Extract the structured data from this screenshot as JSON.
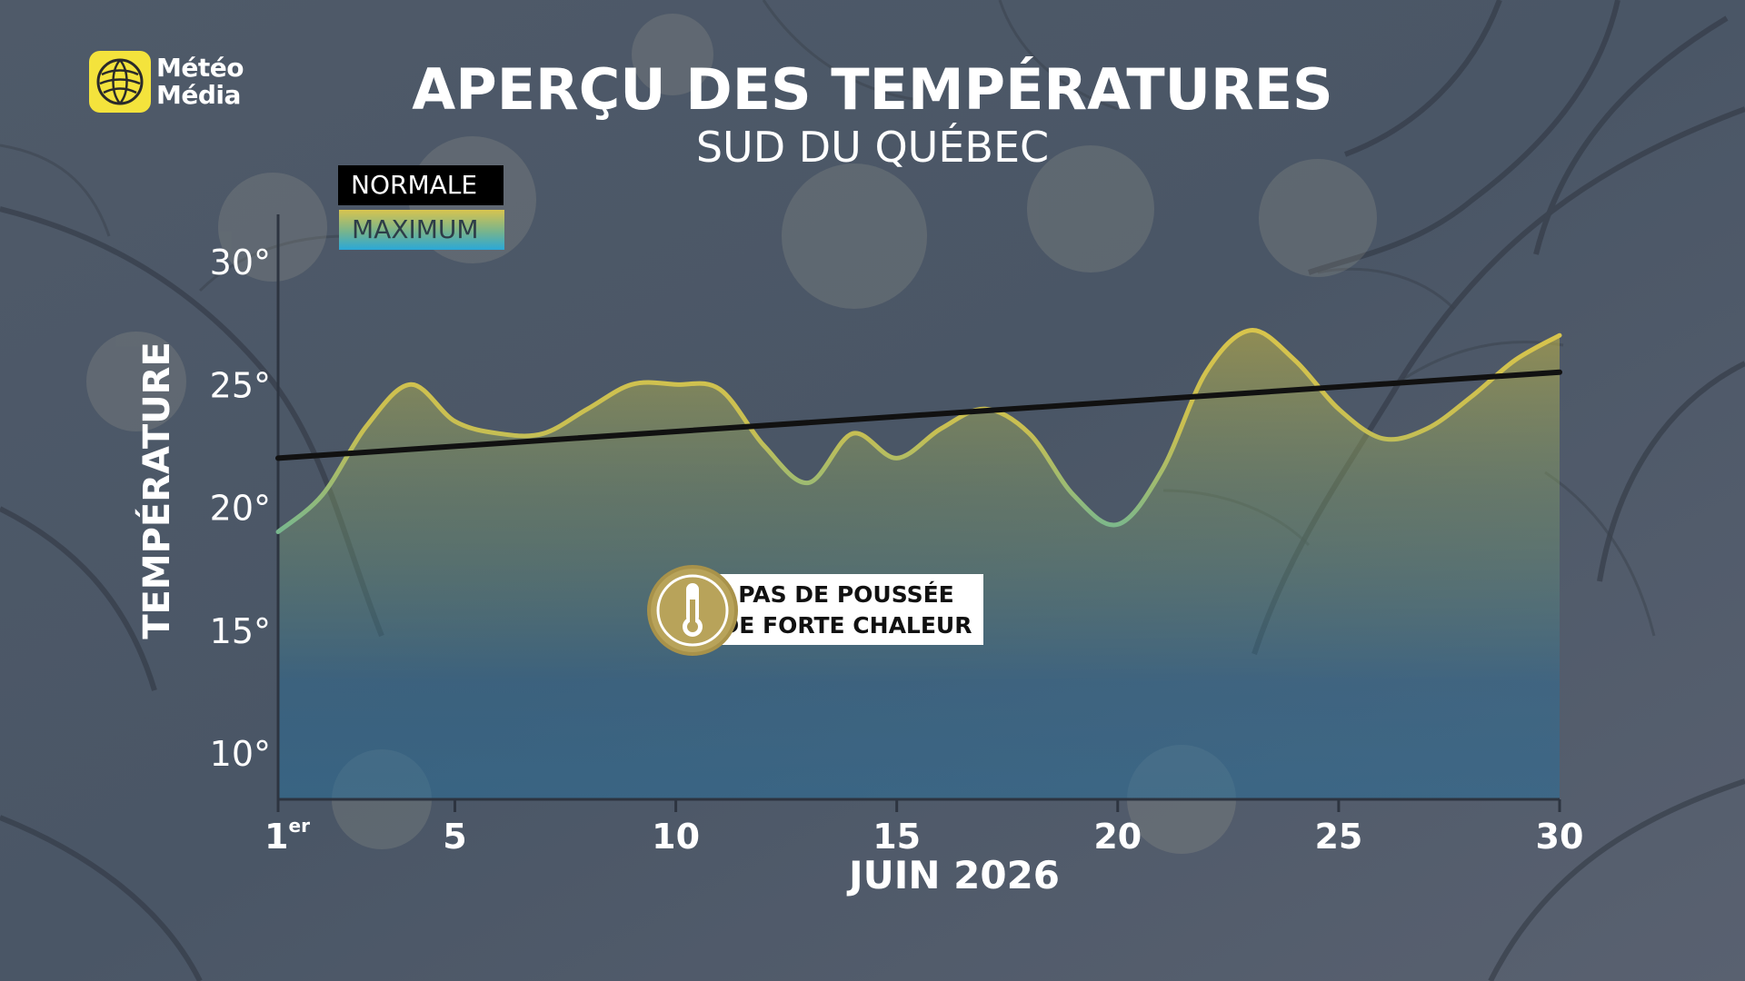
{
  "branding": {
    "logo_line1": "Météo",
    "logo_line2": "Média",
    "logo_icon": "globe-icon"
  },
  "colors": {
    "normal_line": "#111111",
    "max_line_warm": "#d6c44c",
    "max_line_cool": "#7fb98a",
    "axis": "#2d3440",
    "text": "#ffffff"
  },
  "chart_data": {
    "type": "line",
    "title": "APERÇU DES TEMPÉRATURES",
    "subtitle": "SUD DU QUÉBEC",
    "xlabel": "JUIN 2026",
    "ylabel": "TEMPÉRATURE",
    "xlim": [
      1,
      30
    ],
    "ylim": [
      8,
      32
    ],
    "x_ticks": [
      {
        "value": 1,
        "label": "1",
        "sup": "er"
      },
      {
        "value": 5,
        "label": "5",
        "sup": ""
      },
      {
        "value": 10,
        "label": "10",
        "sup": ""
      },
      {
        "value": 15,
        "label": "15",
        "sup": ""
      },
      {
        "value": 20,
        "label": "20",
        "sup": ""
      },
      {
        "value": 25,
        "label": "25",
        "sup": ""
      },
      {
        "value": 30,
        "label": "30",
        "sup": ""
      }
    ],
    "y_ticks": [
      {
        "value": 10,
        "label": "10°"
      },
      {
        "value": 15,
        "label": "15°"
      },
      {
        "value": 20,
        "label": "20°"
      },
      {
        "value": 25,
        "label": "25°"
      },
      {
        "value": 30,
        "label": "30°"
      }
    ],
    "legend_position": "top-left",
    "grid": false,
    "series": [
      {
        "name": "NORMALE",
        "x": [
          1,
          30
        ],
        "values": [
          22.0,
          25.5
        ]
      },
      {
        "name": "MAXIMUM",
        "x": [
          1,
          2,
          3,
          4,
          5,
          6,
          7,
          8,
          9,
          10,
          11,
          12,
          13,
          14,
          15,
          16,
          17,
          18,
          19,
          20,
          21,
          22,
          23,
          24,
          25,
          26,
          27,
          28,
          29,
          30
        ],
        "values": [
          19.0,
          20.5,
          23.3,
          25.0,
          23.5,
          23.0,
          23.0,
          24.0,
          25.0,
          25.0,
          24.8,
          22.5,
          21.0,
          23.0,
          22.0,
          23.2,
          24.0,
          23.0,
          20.5,
          19.3,
          21.5,
          25.5,
          27.2,
          26.0,
          24.0,
          22.8,
          23.2,
          24.5,
          26.0,
          27.0
        ]
      }
    ],
    "annotation": {
      "line1": "PAS DE POUSSÉE",
      "line2": "DE FORTE CHALEUR",
      "icon": "thermometer-icon"
    }
  }
}
